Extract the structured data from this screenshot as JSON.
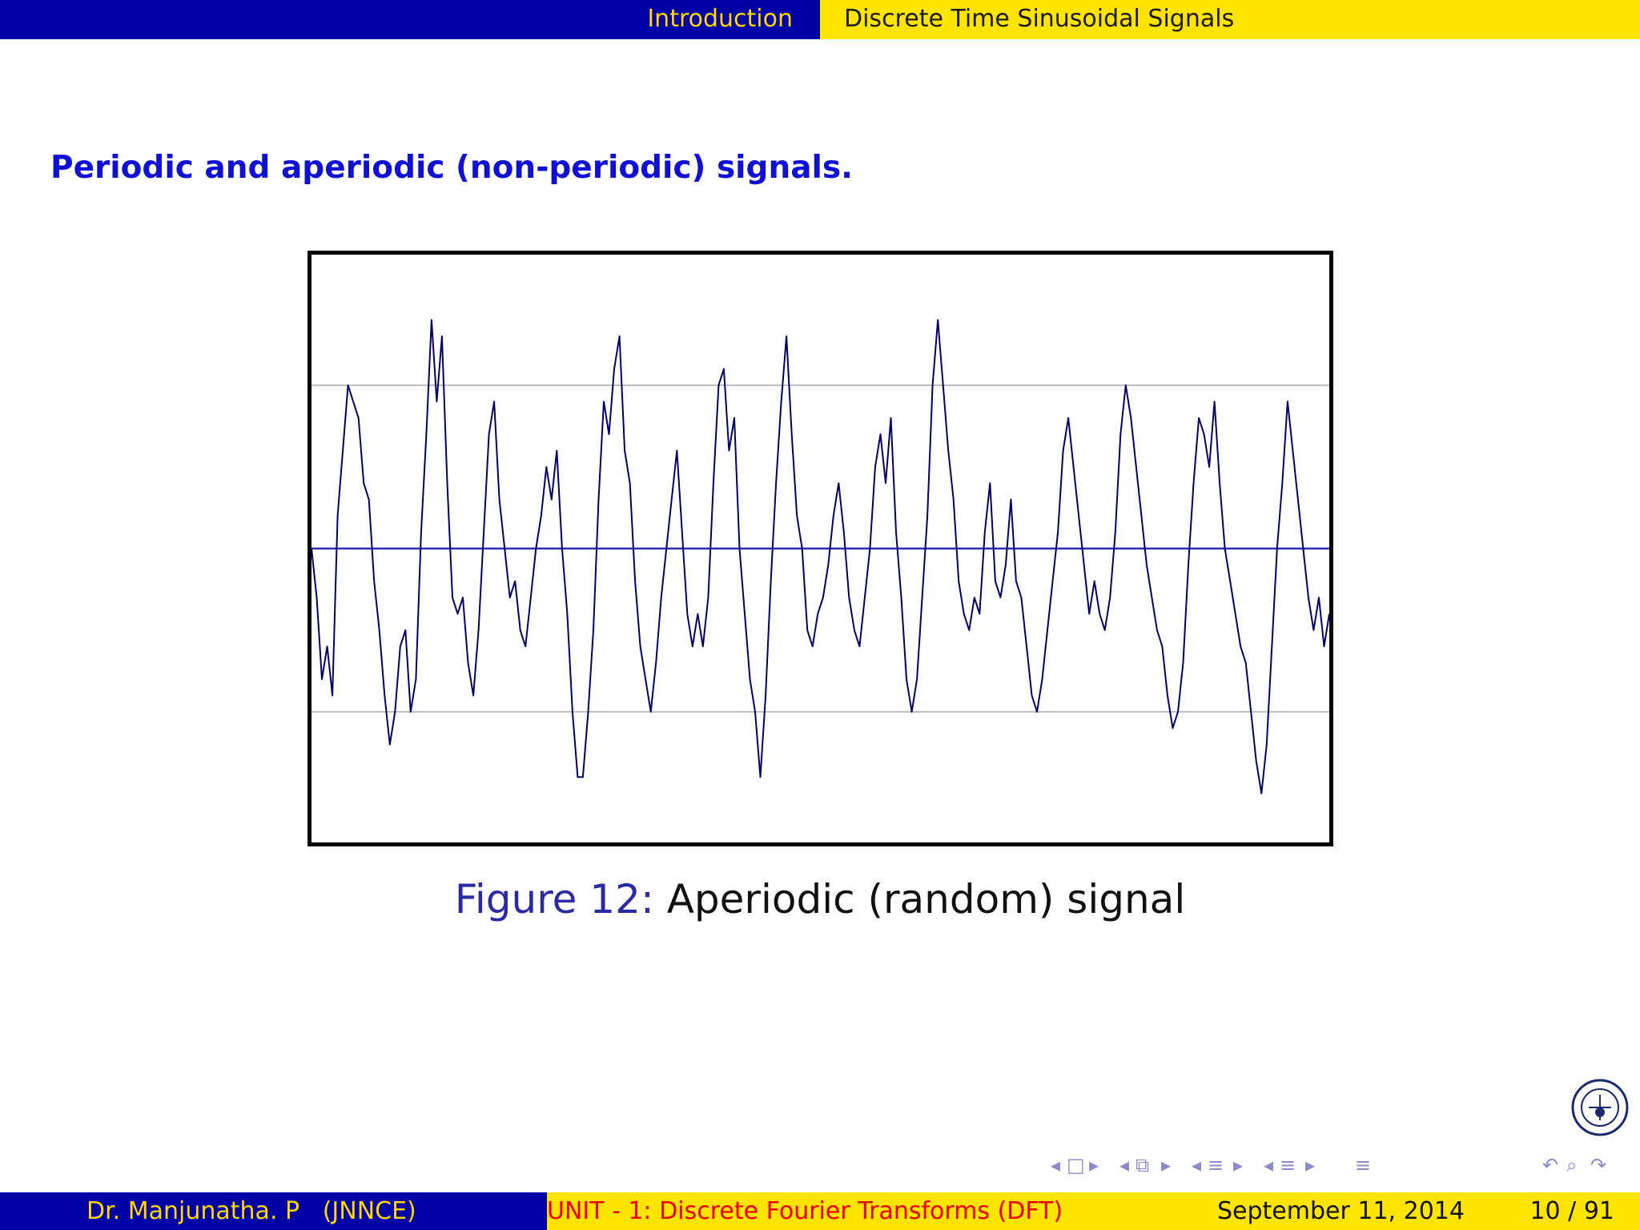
{
  "header": {
    "section_left": "Introduction",
    "section_right": "Discrete Time Sinusoidal Signals",
    "left_bg": "#0000a6",
    "right_bg": "#ffe400"
  },
  "slide": {
    "title": "Periodic and aperiodic (non-periodic) signals.",
    "caption_label": "Figure 12:",
    "caption_text": "Aperiodic (random) signal"
  },
  "chart_data": {
    "type": "line",
    "xlabel": "",
    "ylabel": "",
    "ylim": [
      -1.8,
      1.8
    ],
    "grid": "horizontal lines at -1, 0 (zero line), 1",
    "series": [
      {
        "line_color": "#000066",
        "values": [
          0.0,
          -0.3,
          -0.8,
          -0.6,
          -0.9,
          0.2,
          0.6,
          1.0,
          0.9,
          0.8,
          0.4,
          0.3,
          -0.2,
          -0.5,
          -0.9,
          -1.2,
          -1.0,
          -0.6,
          -0.5,
          -1.0,
          -0.8,
          0.1,
          0.7,
          1.4,
          0.9,
          1.3,
          0.4,
          -0.3,
          -0.4,
          -0.3,
          -0.7,
          -0.9,
          -0.5,
          0.1,
          0.7,
          0.9,
          0.3,
          0.0,
          -0.3,
          -0.2,
          -0.5,
          -0.6,
          -0.3,
          0.0,
          0.2,
          0.5,
          0.3,
          0.6,
          0.0,
          -0.4,
          -1.0,
          -1.4,
          -1.4,
          -1.0,
          -0.5,
          0.3,
          0.9,
          0.7,
          1.1,
          1.3,
          0.6,
          0.4,
          -0.2,
          -0.6,
          -0.8,
          -1.0,
          -0.7,
          -0.3,
          0.0,
          0.3,
          0.6,
          0.1,
          -0.4,
          -0.6,
          -0.4,
          -0.6,
          -0.3,
          0.4,
          1.0,
          1.1,
          0.6,
          0.8,
          0.0,
          -0.4,
          -0.8,
          -1.0,
          -1.4,
          -0.9,
          -0.2,
          0.4,
          0.9,
          1.3,
          0.7,
          0.2,
          0.0,
          -0.5,
          -0.6,
          -0.4,
          -0.3,
          -0.1,
          0.2,
          0.4,
          0.1,
          -0.3,
          -0.5,
          -0.6,
          -0.3,
          0.0,
          0.5,
          0.7,
          0.4,
          0.8,
          0.1,
          -0.3,
          -0.8,
          -1.0,
          -0.8,
          -0.3,
          0.2,
          1.0,
          1.4,
          1.0,
          0.6,
          0.3,
          -0.2,
          -0.4,
          -0.5,
          -0.3,
          -0.4,
          0.1,
          0.4,
          -0.2,
          -0.3,
          -0.1,
          0.3,
          -0.2,
          -0.3,
          -0.6,
          -0.9,
          -1.0,
          -0.8,
          -0.5,
          -0.2,
          0.1,
          0.6,
          0.8,
          0.5,
          0.2,
          -0.1,
          -0.4,
          -0.2,
          -0.4,
          -0.5,
          -0.3,
          0.1,
          0.7,
          1.0,
          0.8,
          0.5,
          0.2,
          -0.1,
          -0.3,
          -0.5,
          -0.6,
          -0.9,
          -1.1,
          -1.0,
          -0.7,
          -0.1,
          0.4,
          0.8,
          0.7,
          0.5,
          0.9,
          0.4,
          0.0,
          -0.2,
          -0.4,
          -0.6,
          -0.7,
          -1.0,
          -1.3,
          -1.5,
          -1.2,
          -0.6,
          0.0,
          0.4,
          0.9,
          0.6,
          0.3,
          0.0,
          -0.3,
          -0.5,
          -0.3,
          -0.6,
          -0.4
        ]
      }
    ]
  },
  "footer": {
    "author": "Dr. Manjunatha. P   (JNNCE)",
    "unit": "UNIT - 1: Discrete Fourier Transforms (DFT)",
    "date": "September 11, 2014",
    "pages": "10 / 91"
  },
  "navigation": {
    "icons": [
      "nav-prev-icon",
      "frame-icon",
      "nav-next-icon",
      "nav-prev-icon",
      "subsection-icon",
      "nav-next-icon",
      "nav-prev-icon",
      "section-icon",
      "nav-next-icon",
      "nav-prev-icon",
      "section-icon",
      "nav-next-icon",
      "align-icon",
      "undo-icon",
      "search-icon",
      "redo-icon"
    ]
  },
  "logo": {
    "name": "college-logo",
    "text": "JNN COLLEGE OF ENGINEERING"
  }
}
